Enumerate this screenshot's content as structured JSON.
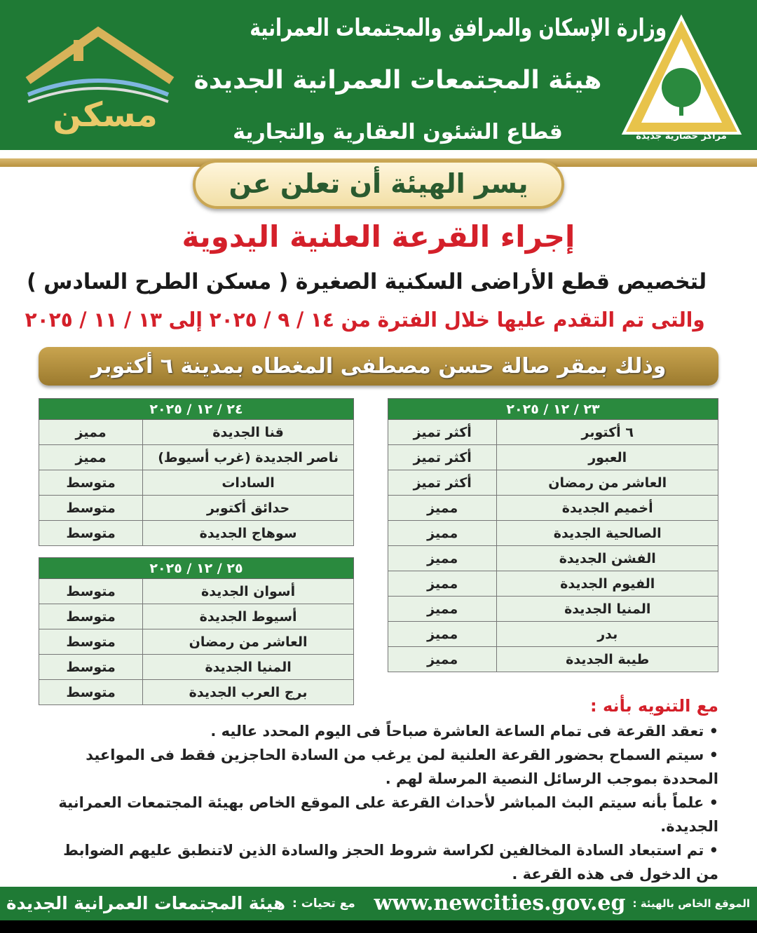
{
  "header": {
    "ministry": "وزارة الإسكان والمرافق والمجتمعات العمرانية",
    "authority": "هيئة المجتمعات العمرانية الجديدة",
    "sector": "قطاع الشئون العقارية والتجارية",
    "logo_right_text": "مراكز حضارية جديدة",
    "logo_left_text": "مسكن"
  },
  "announcement": {
    "pill": "يسر الهيئة أن تعلن عن",
    "title": "إجراء القرعة العلنية اليدوية",
    "line1": "لتخصيص قطع الأراضى السكنية الصغيرة ( مسكن الطرح السادس )",
    "line2": "والتى تم التقدم عليها خلال الفترة من ١٤ / ٩ / ٢٠٢٥ إلى ١٣ / ١١ / ٢٠٢٥",
    "venue": "وذلك بمقر صالة حسن مصطفى المغطاه بمدينة ٦ أكتوبر"
  },
  "tables": [
    {
      "date": "٢٣ / ١٢ / ٢٠٢٥",
      "rows": [
        [
          "٦ أكتوبر",
          "أكثر تميز"
        ],
        [
          "العبور",
          "أكثر تميز"
        ],
        [
          "العاشر من رمضان",
          "أكثر تميز"
        ],
        [
          "أخميم الجديدة",
          "مميز"
        ],
        [
          "الصالحية الجديدة",
          "مميز"
        ],
        [
          "الفشن الجديدة",
          "مميز"
        ],
        [
          "الفيوم الجديدة",
          "مميز"
        ],
        [
          "المنيا الجديدة",
          "مميز"
        ],
        [
          "بدر",
          "مميز"
        ],
        [
          "طيبة الجديدة",
          "مميز"
        ]
      ]
    },
    {
      "date": "٢٤ / ١٢ / ٢٠٢٥",
      "rows": [
        [
          "قنا الجديدة",
          "مميز"
        ],
        [
          "ناصر الجديدة (غرب أسيوط)",
          "مميز"
        ],
        [
          "السادات",
          "متوسط"
        ],
        [
          "حدائق أكتوبر",
          "متوسط"
        ],
        [
          "سوهاج الجديدة",
          "متوسط"
        ]
      ]
    },
    {
      "date": "٢٥ / ١٢ / ٢٠٢٥",
      "rows": [
        [
          "أسوان الجديدة",
          "متوسط"
        ],
        [
          "أسيوط الجديدة",
          "متوسط"
        ],
        [
          "العاشر من رمضان",
          "متوسط"
        ],
        [
          "المنيا الجديدة",
          "متوسط"
        ],
        [
          "برج العرب الجديدة",
          "متوسط"
        ]
      ]
    }
  ],
  "notes": {
    "title": "مع التنويه بأنه :",
    "items": [
      "تعقد القرعة فى تمام الساعة العاشرة صباحاً فى اليوم المحدد عاليه .",
      "سيتم السماح بحضور القرعة العلنية لمن يرغب من السادة الحاجزين فقط فى المواعيد المحددة بموجب الرسائل النصية المرسلة لهم .",
      "علماً بأنه سيتم البث المباشر لأحداث القرعة على الموقع الخاص بهيئة المجتمعات العمرانية الجديدة.",
      "تم استبعاد السادة المخالفين لكراسة شروط الحجز والسادة الذين لاتنطبق عليهم الضوابط من الدخول فى هذه القرعة ."
    ]
  },
  "footer": {
    "site_label": "الموقع الخاص بالهيئة :",
    "url": "www.newcities.gov.eg",
    "greeting_label": "مع تحيات :",
    "greeting_org": "هيئة المجتمعات العمرانية الجديدة"
  },
  "colors": {
    "green": "#1f7a35",
    "gold": "#c9a44f",
    "red": "#d4202a"
  }
}
